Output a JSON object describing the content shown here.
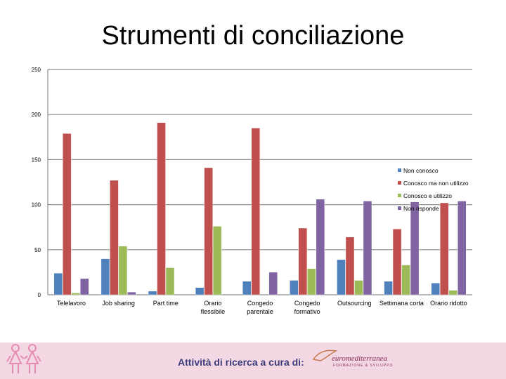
{
  "chart_data": {
    "type": "bar",
    "title": "Strumenti di conciliazione",
    "categories": [
      "Telelavoro",
      "Job sharing",
      "Part time",
      "Orario flessibile",
      "Congedo parentale",
      "Congedo formativo",
      "Outsourcing",
      "Settimana corta",
      "Orario ridotto"
    ],
    "series": [
      {
        "name": "Non conosco",
        "color": "#4f81bd",
        "values": [
          24,
          40,
          4,
          8,
          15,
          16,
          39,
          15,
          13
        ]
      },
      {
        "name": "Conosco ma non utilizzo",
        "color": "#c0504d",
        "values": [
          179,
          127,
          191,
          141,
          185,
          74,
          64,
          73,
          102
        ]
      },
      {
        "name": "Conosco e utilizzo",
        "color": "#9bbb59",
        "values": [
          2,
          54,
          30,
          76,
          0,
          29,
          16,
          33,
          5
        ]
      },
      {
        "name": "Non risponde",
        "color": "#8064a2",
        "values": [
          18,
          3,
          0,
          0,
          25,
          106,
          104,
          103,
          104
        ]
      }
    ],
    "ylim": [
      0,
      250
    ],
    "yticks": [
      0,
      50,
      100,
      150,
      200,
      250
    ],
    "grid": true,
    "legend": "right"
  },
  "footer": {
    "text": "Attività di ricerca a cura di:",
    "logo_name": "euromediterranea",
    "logo_sub": "FORMAZIONE & SVILUPPO",
    "icons": [
      "people-icon",
      "bird-icon"
    ]
  }
}
